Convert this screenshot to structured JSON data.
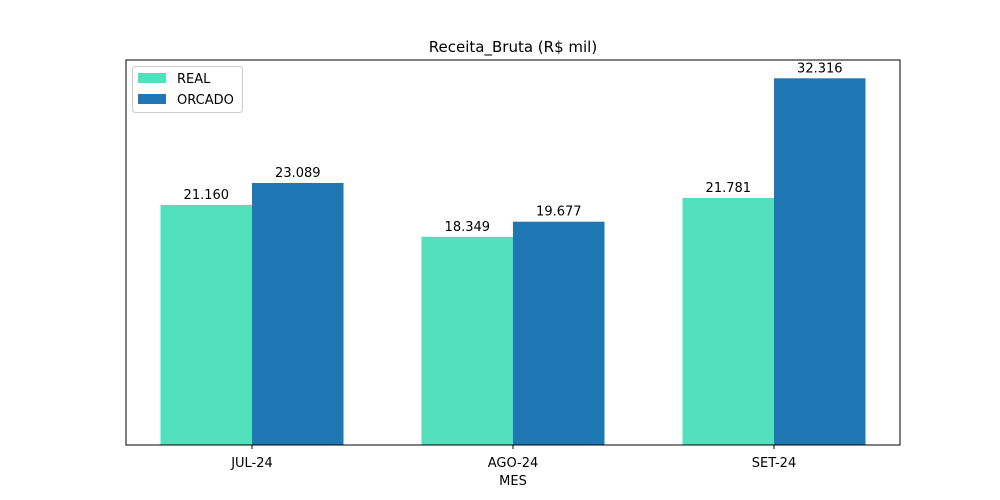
{
  "chart_data": {
    "type": "bar",
    "title": "Receita_Bruta (R$ mil)",
    "xlabel": "MES",
    "ylabel": "",
    "categories": [
      "JUL-24",
      "AGO-24",
      "SET-24"
    ],
    "series": [
      {
        "name": "REAL",
        "values": [
          21.16,
          18.349,
          21.781
        ],
        "labels": [
          "21.160",
          "18.349",
          "21.781"
        ],
        "color": "#50e0bc"
      },
      {
        "name": "ORCADO",
        "values": [
          23.089,
          19.677,
          32.316
        ],
        "labels": [
          "23.089",
          "19.677",
          "32.316"
        ],
        "color": "#1f77b4"
      }
    ],
    "ylim": [
      0,
      33.93
    ],
    "y_axis_visible": false,
    "grid": false,
    "legend": "top-left"
  }
}
